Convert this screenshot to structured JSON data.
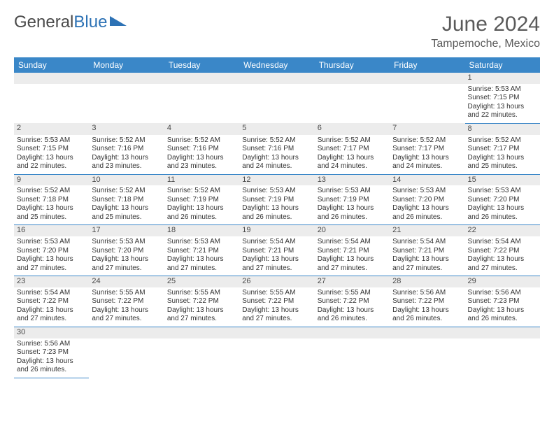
{
  "logo": {
    "part1": "General",
    "part2": "Blue"
  },
  "title": "June 2024",
  "location": "Tampemoche, Mexico",
  "colors": {
    "header_bg": "#3a87c8",
    "header_text": "#ffffff",
    "daynum_bg": "#ececec",
    "border": "#3a87c8",
    "text": "#333333",
    "title_text": "#5a5a5a"
  },
  "weekdays": [
    "Sunday",
    "Monday",
    "Tuesday",
    "Wednesday",
    "Thursday",
    "Friday",
    "Saturday"
  ],
  "weeks": [
    [
      null,
      null,
      null,
      null,
      null,
      null,
      {
        "n": "1",
        "sr": "Sunrise: 5:53 AM",
        "ss": "Sunset: 7:15 PM",
        "dl": "Daylight: 13 hours and 22 minutes."
      }
    ],
    [
      {
        "n": "2",
        "sr": "Sunrise: 5:53 AM",
        "ss": "Sunset: 7:15 PM",
        "dl": "Daylight: 13 hours and 22 minutes."
      },
      {
        "n": "3",
        "sr": "Sunrise: 5:52 AM",
        "ss": "Sunset: 7:16 PM",
        "dl": "Daylight: 13 hours and 23 minutes."
      },
      {
        "n": "4",
        "sr": "Sunrise: 5:52 AM",
        "ss": "Sunset: 7:16 PM",
        "dl": "Daylight: 13 hours and 23 minutes."
      },
      {
        "n": "5",
        "sr": "Sunrise: 5:52 AM",
        "ss": "Sunset: 7:16 PM",
        "dl": "Daylight: 13 hours and 24 minutes."
      },
      {
        "n": "6",
        "sr": "Sunrise: 5:52 AM",
        "ss": "Sunset: 7:17 PM",
        "dl": "Daylight: 13 hours and 24 minutes."
      },
      {
        "n": "7",
        "sr": "Sunrise: 5:52 AM",
        "ss": "Sunset: 7:17 PM",
        "dl": "Daylight: 13 hours and 24 minutes."
      },
      {
        "n": "8",
        "sr": "Sunrise: 5:52 AM",
        "ss": "Sunset: 7:17 PM",
        "dl": "Daylight: 13 hours and 25 minutes."
      }
    ],
    [
      {
        "n": "9",
        "sr": "Sunrise: 5:52 AM",
        "ss": "Sunset: 7:18 PM",
        "dl": "Daylight: 13 hours and 25 minutes."
      },
      {
        "n": "10",
        "sr": "Sunrise: 5:52 AM",
        "ss": "Sunset: 7:18 PM",
        "dl": "Daylight: 13 hours and 25 minutes."
      },
      {
        "n": "11",
        "sr": "Sunrise: 5:52 AM",
        "ss": "Sunset: 7:19 PM",
        "dl": "Daylight: 13 hours and 26 minutes."
      },
      {
        "n": "12",
        "sr": "Sunrise: 5:53 AM",
        "ss": "Sunset: 7:19 PM",
        "dl": "Daylight: 13 hours and 26 minutes."
      },
      {
        "n": "13",
        "sr": "Sunrise: 5:53 AM",
        "ss": "Sunset: 7:19 PM",
        "dl": "Daylight: 13 hours and 26 minutes."
      },
      {
        "n": "14",
        "sr": "Sunrise: 5:53 AM",
        "ss": "Sunset: 7:20 PM",
        "dl": "Daylight: 13 hours and 26 minutes."
      },
      {
        "n": "15",
        "sr": "Sunrise: 5:53 AM",
        "ss": "Sunset: 7:20 PM",
        "dl": "Daylight: 13 hours and 26 minutes."
      }
    ],
    [
      {
        "n": "16",
        "sr": "Sunrise: 5:53 AM",
        "ss": "Sunset: 7:20 PM",
        "dl": "Daylight: 13 hours and 27 minutes."
      },
      {
        "n": "17",
        "sr": "Sunrise: 5:53 AM",
        "ss": "Sunset: 7:20 PM",
        "dl": "Daylight: 13 hours and 27 minutes."
      },
      {
        "n": "18",
        "sr": "Sunrise: 5:53 AM",
        "ss": "Sunset: 7:21 PM",
        "dl": "Daylight: 13 hours and 27 minutes."
      },
      {
        "n": "19",
        "sr": "Sunrise: 5:54 AM",
        "ss": "Sunset: 7:21 PM",
        "dl": "Daylight: 13 hours and 27 minutes."
      },
      {
        "n": "20",
        "sr": "Sunrise: 5:54 AM",
        "ss": "Sunset: 7:21 PM",
        "dl": "Daylight: 13 hours and 27 minutes."
      },
      {
        "n": "21",
        "sr": "Sunrise: 5:54 AM",
        "ss": "Sunset: 7:21 PM",
        "dl": "Daylight: 13 hours and 27 minutes."
      },
      {
        "n": "22",
        "sr": "Sunrise: 5:54 AM",
        "ss": "Sunset: 7:22 PM",
        "dl": "Daylight: 13 hours and 27 minutes."
      }
    ],
    [
      {
        "n": "23",
        "sr": "Sunrise: 5:54 AM",
        "ss": "Sunset: 7:22 PM",
        "dl": "Daylight: 13 hours and 27 minutes."
      },
      {
        "n": "24",
        "sr": "Sunrise: 5:55 AM",
        "ss": "Sunset: 7:22 PM",
        "dl": "Daylight: 13 hours and 27 minutes."
      },
      {
        "n": "25",
        "sr": "Sunrise: 5:55 AM",
        "ss": "Sunset: 7:22 PM",
        "dl": "Daylight: 13 hours and 27 minutes."
      },
      {
        "n": "26",
        "sr": "Sunrise: 5:55 AM",
        "ss": "Sunset: 7:22 PM",
        "dl": "Daylight: 13 hours and 27 minutes."
      },
      {
        "n": "27",
        "sr": "Sunrise: 5:55 AM",
        "ss": "Sunset: 7:22 PM",
        "dl": "Daylight: 13 hours and 26 minutes."
      },
      {
        "n": "28",
        "sr": "Sunrise: 5:56 AM",
        "ss": "Sunset: 7:22 PM",
        "dl": "Daylight: 13 hours and 26 minutes."
      },
      {
        "n": "29",
        "sr": "Sunrise: 5:56 AM",
        "ss": "Sunset: 7:23 PM",
        "dl": "Daylight: 13 hours and 26 minutes."
      }
    ],
    [
      {
        "n": "30",
        "sr": "Sunrise: 5:56 AM",
        "ss": "Sunset: 7:23 PM",
        "dl": "Daylight: 13 hours and 26 minutes."
      },
      null,
      null,
      null,
      null,
      null,
      null
    ]
  ]
}
